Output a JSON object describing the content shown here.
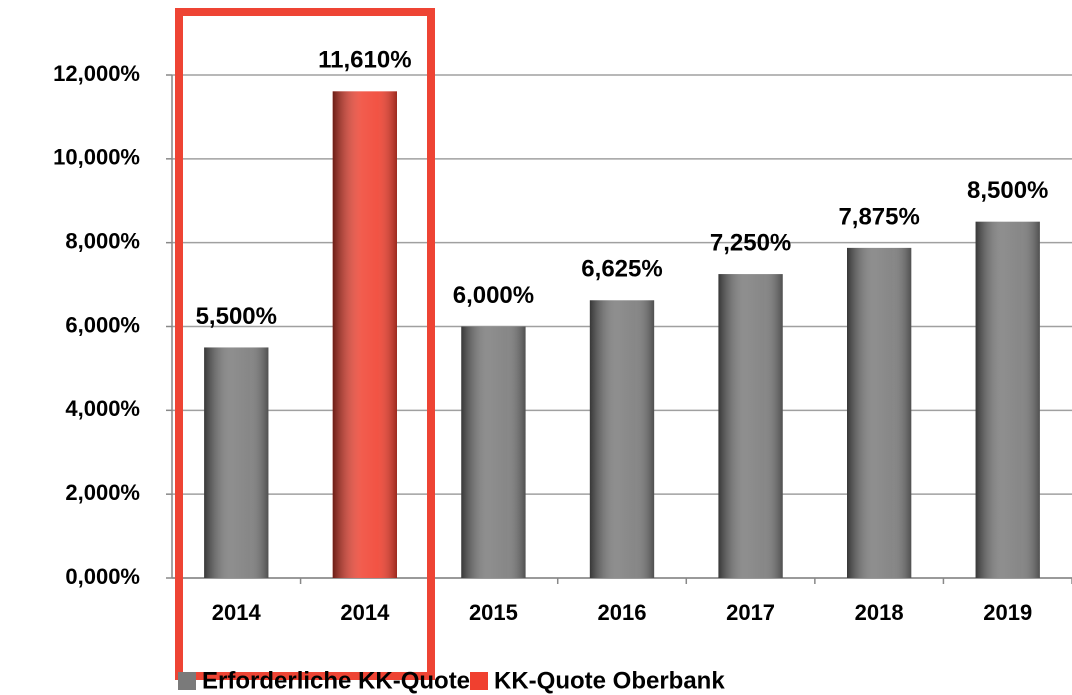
{
  "chart_data": {
    "type": "bar",
    "categories": [
      "2014",
      "2014",
      "2015",
      "2016",
      "2017",
      "2018",
      "2019"
    ],
    "series": [
      {
        "name": "Erforderliche KK-Quote",
        "color": "#7a7a7a",
        "values": [
          5.5,
          null,
          6,
          6.625,
          7.25,
          7.875,
          8.5
        ],
        "value_labels": [
          "5,500%",
          null,
          "6,000%",
          "6,625%",
          "7,250%",
          "7,875%",
          "8,500%"
        ]
      },
      {
        "name": "KK-Quote Oberbank",
        "color": "#f0402f",
        "values": [
          null,
          11.61,
          null,
          null,
          null,
          null,
          null
        ],
        "value_labels": [
          null,
          "11,610%",
          null,
          null,
          null,
          null,
          null
        ]
      }
    ],
    "ylim": [
      0,
      12
    ],
    "yticks": [
      {
        "value": 0,
        "label": "0,000%"
      },
      {
        "value": 2,
        "label": "2,000%"
      },
      {
        "value": 4,
        "label": "4,000%"
      },
      {
        "value": 6,
        "label": "6,000%"
      },
      {
        "value": 8,
        "label": "8,000%"
      },
      {
        "value": 10,
        "label": "10,000%"
      },
      {
        "value": 12,
        "label": "12,000%"
      }
    ],
    "grid": true
  }
}
